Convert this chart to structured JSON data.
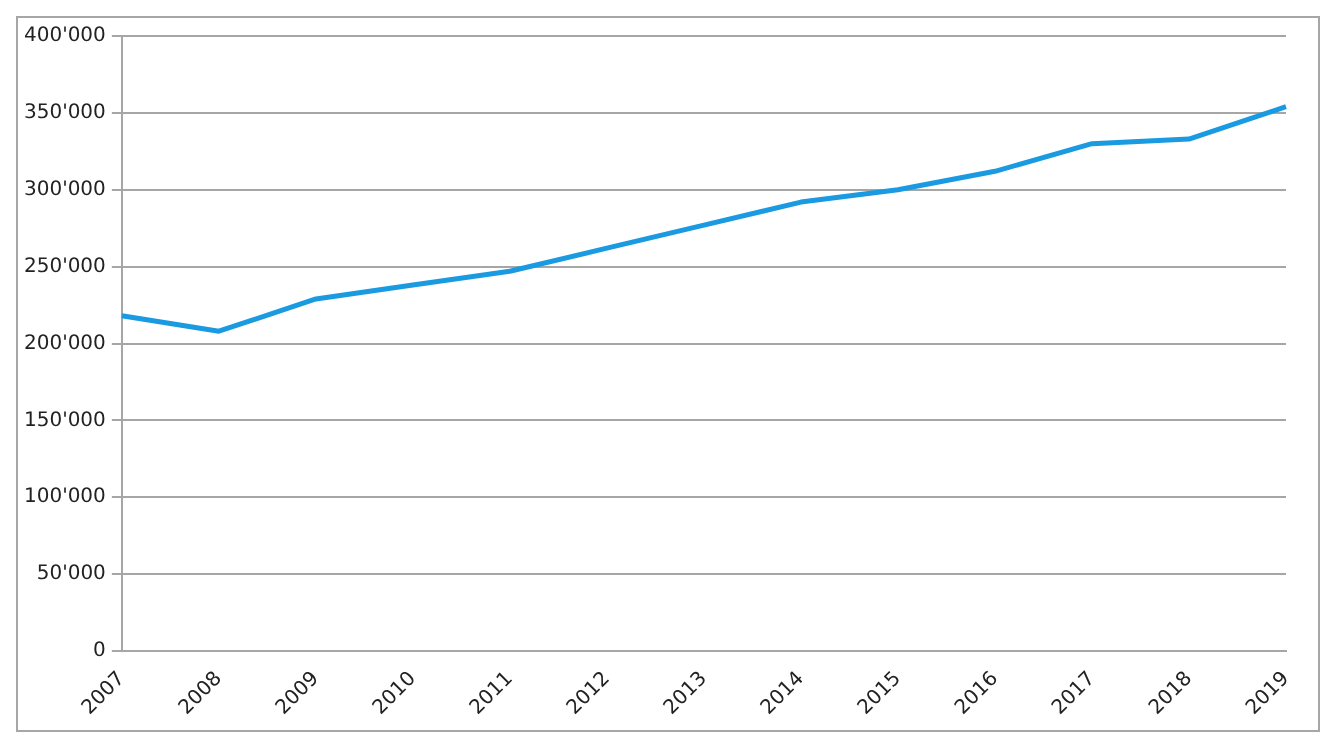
{
  "chart_data": {
    "type": "line",
    "categories": [
      "2007",
      "2008",
      "2009",
      "2010",
      "2011",
      "2012",
      "2013",
      "2014",
      "2015",
      "2016",
      "2017",
      "2018",
      "2019"
    ],
    "series": [
      {
        "color": "#1a9ae0",
        "values": [
          218000,
          208000,
          229000,
          238000,
          247000,
          262000,
          277000,
          292000,
          300000,
          312000,
          330000,
          333000,
          354000
        ]
      }
    ],
    "ylim": [
      0,
      400000
    ],
    "yticks": [
      0,
      {
        "value": 50000,
        "label": "50'000"
      },
      {
        "value": 100000,
        "label": "100'000"
      },
      {
        "value": 150000,
        "label": "150'000"
      },
      {
        "value": 200000,
        "label": "200'000"
      },
      {
        "value": 250000,
        "label": "250'000"
      },
      {
        "value": 300000,
        "label": "300'000"
      },
      {
        "value": 350000,
        "label": "350'000"
      },
      {
        "value": 400000,
        "label": "400'000"
      }
    ],
    "grid": "y",
    "legend": false,
    "marker": "none",
    "line_style": "solid"
  }
}
